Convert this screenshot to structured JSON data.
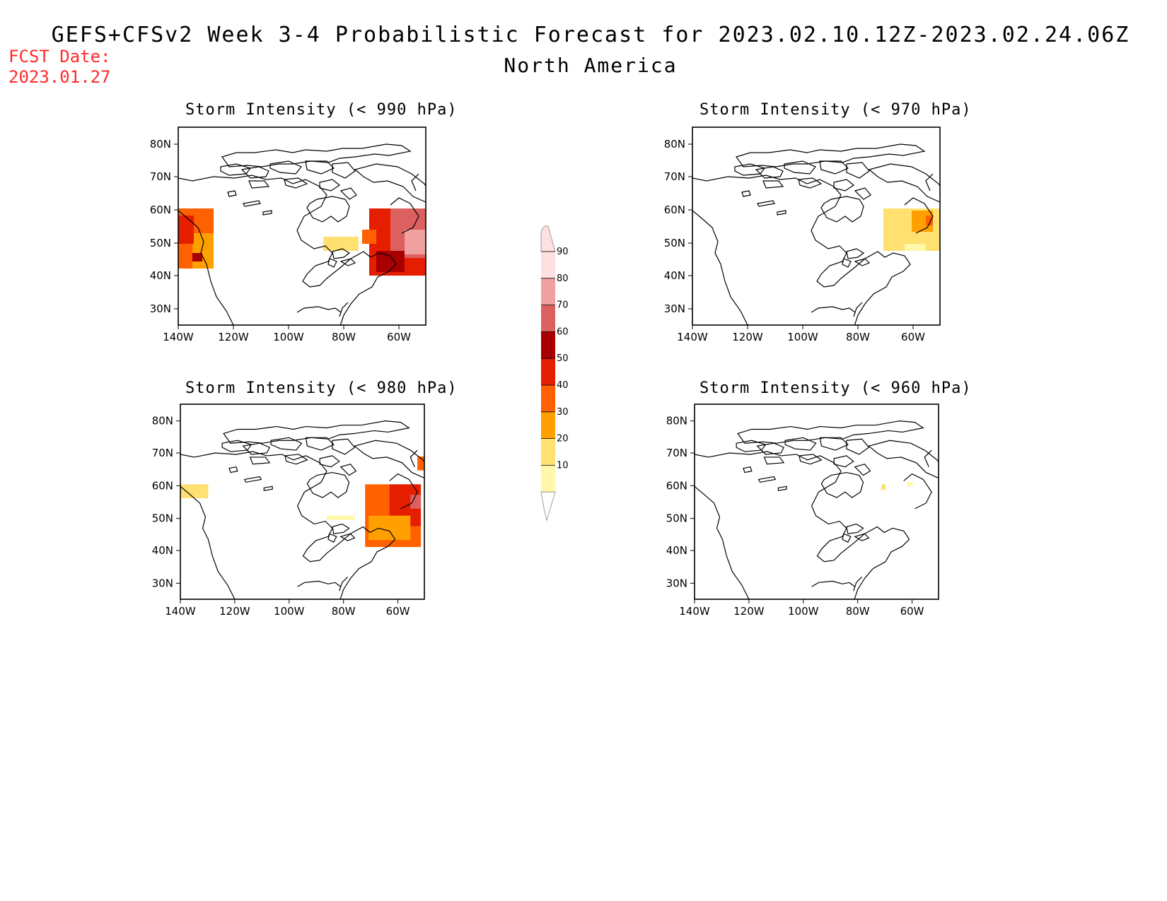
{
  "header": {
    "fcst_label": "FCST Date:",
    "fcst_date": "2023.01.27",
    "title": "GEFS+CFSv2 Week 3-4 Probabilistic Forecast for 2023.02.10.12Z-2023.02.24.06Z",
    "subtitle": "North America"
  },
  "panels": [
    {
      "title": "Storm Intensity (< 990 hPa)",
      "level": "990"
    },
    {
      "title": "Storm Intensity (< 970 hPa)",
      "level": "970"
    },
    {
      "title": "Storm Intensity (< 980 hPa)",
      "level": "980"
    },
    {
      "title": "Storm Intensity (< 960 hPa)",
      "level": "960"
    }
  ],
  "axes": {
    "lat_labels": [
      "80N",
      "70N",
      "60N",
      "50N",
      "40N",
      "30N"
    ],
    "lon_labels": [
      "140W",
      "120W",
      "100W",
      "80W",
      "60W"
    ]
  },
  "colorbar": {
    "labels": [
      "90",
      "80",
      "70",
      "60",
      "50",
      "40",
      "30",
      "20",
      "10"
    ],
    "colors": [
      "#fff8a8",
      "#ffe070",
      "#ffa000",
      "#ff6000",
      "#e61e00",
      "#a80000",
      "#dc6060",
      "#f0a0a0",
      "#ffe0e0",
      "#ffffff"
    ]
  }
}
